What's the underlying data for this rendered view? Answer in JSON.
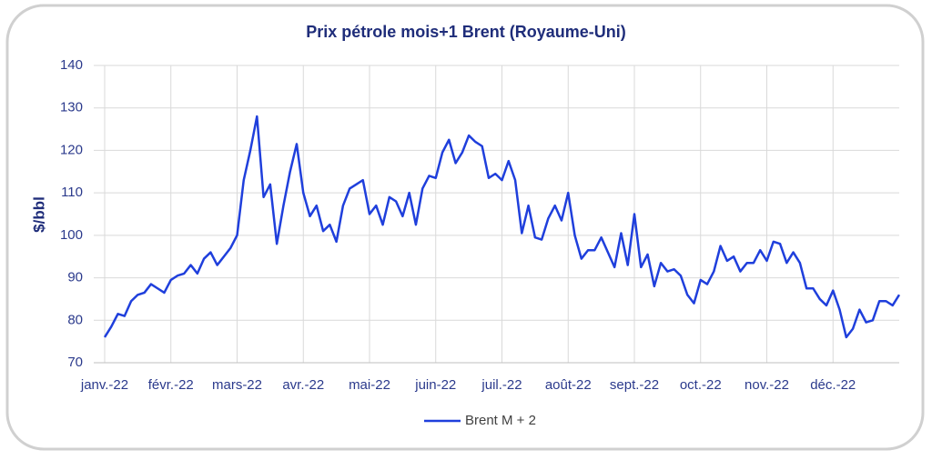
{
  "chart_data": {
    "type": "line",
    "title": "Prix pétrole mois+1 Brent (Royaume-Uni)",
    "y_label": "$/bbl",
    "ylim": [
      70,
      140
    ],
    "yticks": [
      70,
      80,
      90,
      100,
      110,
      120,
      130,
      140
    ],
    "grid": true,
    "legend": "bottom",
    "categories": [
      "janv.-22",
      null,
      null,
      null,
      null,
      null,
      null,
      null,
      null,
      null,
      "févr.-22",
      null,
      null,
      null,
      null,
      null,
      null,
      null,
      null,
      null,
      "mars-22",
      null,
      null,
      null,
      null,
      null,
      null,
      null,
      null,
      null,
      "avr.-22",
      null,
      null,
      null,
      null,
      null,
      null,
      null,
      null,
      null,
      "mai-22",
      null,
      null,
      null,
      null,
      null,
      null,
      null,
      null,
      null,
      "juin-22",
      null,
      null,
      null,
      null,
      null,
      null,
      null,
      null,
      null,
      "juil.-22",
      null,
      null,
      null,
      null,
      null,
      null,
      null,
      null,
      null,
      "août-22",
      null,
      null,
      null,
      null,
      null,
      null,
      null,
      null,
      null,
      "sept.-22",
      null,
      null,
      null,
      null,
      null,
      null,
      null,
      null,
      null,
      "oct.-22",
      null,
      null,
      null,
      null,
      null,
      null,
      null,
      null,
      null,
      "nov.-22",
      null,
      null,
      null,
      null,
      null,
      null,
      null,
      null,
      null,
      "déc.-22",
      null,
      null,
      null,
      null,
      null,
      null,
      null,
      null,
      null,
      null
    ],
    "series": [
      {
        "name": "Brent M + 2",
        "color": "#1f3fdc",
        "values": [
          76,
          78.5,
          81.5,
          81,
          84.5,
          86,
          86.5,
          88.5,
          87.5,
          86.5,
          89.5,
          90.5,
          91,
          93,
          91,
          94.5,
          96,
          93,
          95,
          97,
          100,
          113,
          120,
          128,
          109,
          112,
          98,
          107,
          115,
          121.5,
          110,
          104.5,
          107,
          101,
          102.5,
          98.5,
          107,
          111,
          112,
          113,
          105,
          107,
          102.5,
          109,
          108,
          104.5,
          110,
          102.5,
          111,
          114,
          113.5,
          119.5,
          122.5,
          117,
          119.5,
          123.5,
          122,
          121,
          113.5,
          114.5,
          113,
          117.5,
          113,
          100.5,
          107,
          99.5,
          99,
          104,
          107,
          103.5,
          110,
          100,
          94.5,
          96.5,
          96.5,
          99.5,
          96,
          92.5,
          100.5,
          93,
          105,
          92.5,
          95.5,
          88,
          93.5,
          91.5,
          92,
          90.5,
          86,
          84,
          89.5,
          88.5,
          91.5,
          97.5,
          94,
          95,
          91.5,
          93.5,
          93.5,
          96.5,
          94,
          98.5,
          98,
          93.5,
          96,
          93.5,
          87.5,
          87.5,
          85,
          83.5,
          87,
          82.5,
          76,
          78,
          82.5,
          79.5,
          80,
          84.5,
          84.5,
          83.5,
          86
        ]
      }
    ]
  }
}
